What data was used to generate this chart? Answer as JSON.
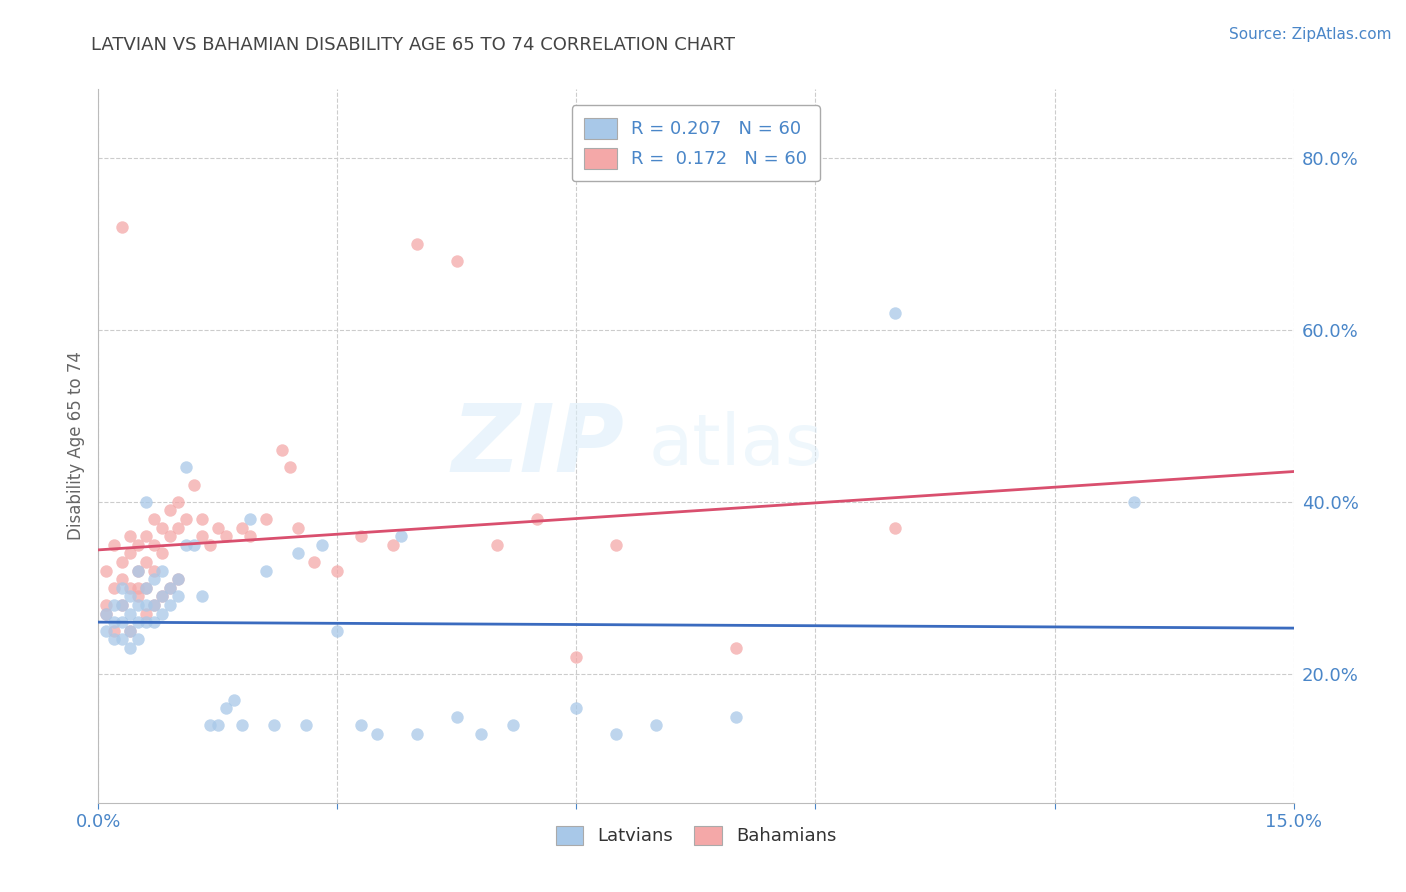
{
  "title": "LATVIAN VS BAHAMIAN DISABILITY AGE 65 TO 74 CORRELATION CHART",
  "source": "Source: ZipAtlas.com",
  "xlim": [
    0.0,
    0.15
  ],
  "ylim": [
    0.05,
    0.88
  ],
  "ylabel": "Disability Age 65 to 74",
  "latvian_color": "#a8c8e8",
  "bahamian_color": "#f4a8a8",
  "regression_latvian_color": "#3a6bbf",
  "regression_bahamian_color": "#d94f6e",
  "R_latvian": 0.207,
  "R_bahamian": 0.172,
  "N_latvian": 60,
  "N_bahamian": 60,
  "latvian_x": [
    0.001,
    0.001,
    0.002,
    0.002,
    0.002,
    0.003,
    0.003,
    0.003,
    0.003,
    0.004,
    0.004,
    0.004,
    0.004,
    0.005,
    0.005,
    0.005,
    0.005,
    0.006,
    0.006,
    0.006,
    0.006,
    0.007,
    0.007,
    0.007,
    0.008,
    0.008,
    0.008,
    0.009,
    0.009,
    0.01,
    0.01,
    0.011,
    0.011,
    0.012,
    0.013,
    0.014,
    0.015,
    0.016,
    0.017,
    0.018,
    0.019,
    0.021,
    0.022,
    0.025,
    0.026,
    0.028,
    0.03,
    0.033,
    0.035,
    0.038,
    0.04,
    0.045,
    0.048,
    0.052,
    0.06,
    0.065,
    0.07,
    0.08,
    0.1,
    0.13
  ],
  "latvian_y": [
    0.27,
    0.25,
    0.28,
    0.26,
    0.24,
    0.3,
    0.28,
    0.26,
    0.24,
    0.29,
    0.27,
    0.25,
    0.23,
    0.32,
    0.28,
    0.26,
    0.24,
    0.3,
    0.28,
    0.26,
    0.4,
    0.31,
    0.28,
    0.26,
    0.32,
    0.29,
    0.27,
    0.3,
    0.28,
    0.31,
    0.29,
    0.44,
    0.35,
    0.35,
    0.29,
    0.14,
    0.14,
    0.16,
    0.17,
    0.14,
    0.38,
    0.32,
    0.14,
    0.34,
    0.14,
    0.35,
    0.25,
    0.14,
    0.13,
    0.36,
    0.13,
    0.15,
    0.13,
    0.14,
    0.16,
    0.13,
    0.14,
    0.15,
    0.62,
    0.4
  ],
  "bahamian_x": [
    0.001,
    0.001,
    0.002,
    0.002,
    0.003,
    0.003,
    0.003,
    0.004,
    0.004,
    0.004,
    0.005,
    0.005,
    0.005,
    0.006,
    0.006,
    0.006,
    0.007,
    0.007,
    0.007,
    0.008,
    0.008,
    0.009,
    0.009,
    0.01,
    0.01,
    0.011,
    0.012,
    0.013,
    0.013,
    0.014,
    0.015,
    0.016,
    0.018,
    0.019,
    0.021,
    0.023,
    0.024,
    0.025,
    0.027,
    0.03,
    0.033,
    0.037,
    0.04,
    0.045,
    0.05,
    0.055,
    0.06,
    0.065,
    0.08,
    0.1,
    0.001,
    0.002,
    0.003,
    0.004,
    0.005,
    0.006,
    0.007,
    0.008,
    0.009,
    0.01
  ],
  "bahamian_y": [
    0.32,
    0.28,
    0.35,
    0.3,
    0.33,
    0.31,
    0.28,
    0.36,
    0.34,
    0.3,
    0.35,
    0.32,
    0.29,
    0.36,
    0.33,
    0.3,
    0.38,
    0.35,
    0.32,
    0.37,
    0.34,
    0.39,
    0.36,
    0.4,
    0.37,
    0.38,
    0.42,
    0.38,
    0.36,
    0.35,
    0.37,
    0.36,
    0.37,
    0.36,
    0.38,
    0.46,
    0.44,
    0.37,
    0.33,
    0.32,
    0.36,
    0.35,
    0.7,
    0.68,
    0.35,
    0.38,
    0.22,
    0.35,
    0.23,
    0.37,
    0.27,
    0.25,
    0.72,
    0.25,
    0.3,
    0.27,
    0.28,
    0.29,
    0.3,
    0.31
  ],
  "watermark_zip": "ZIP",
  "watermark_atlas": "atlas",
  "background_color": "#ffffff",
  "grid_color": "#cccccc",
  "tick_color": "#4a86c8",
  "title_color": "#444444"
}
